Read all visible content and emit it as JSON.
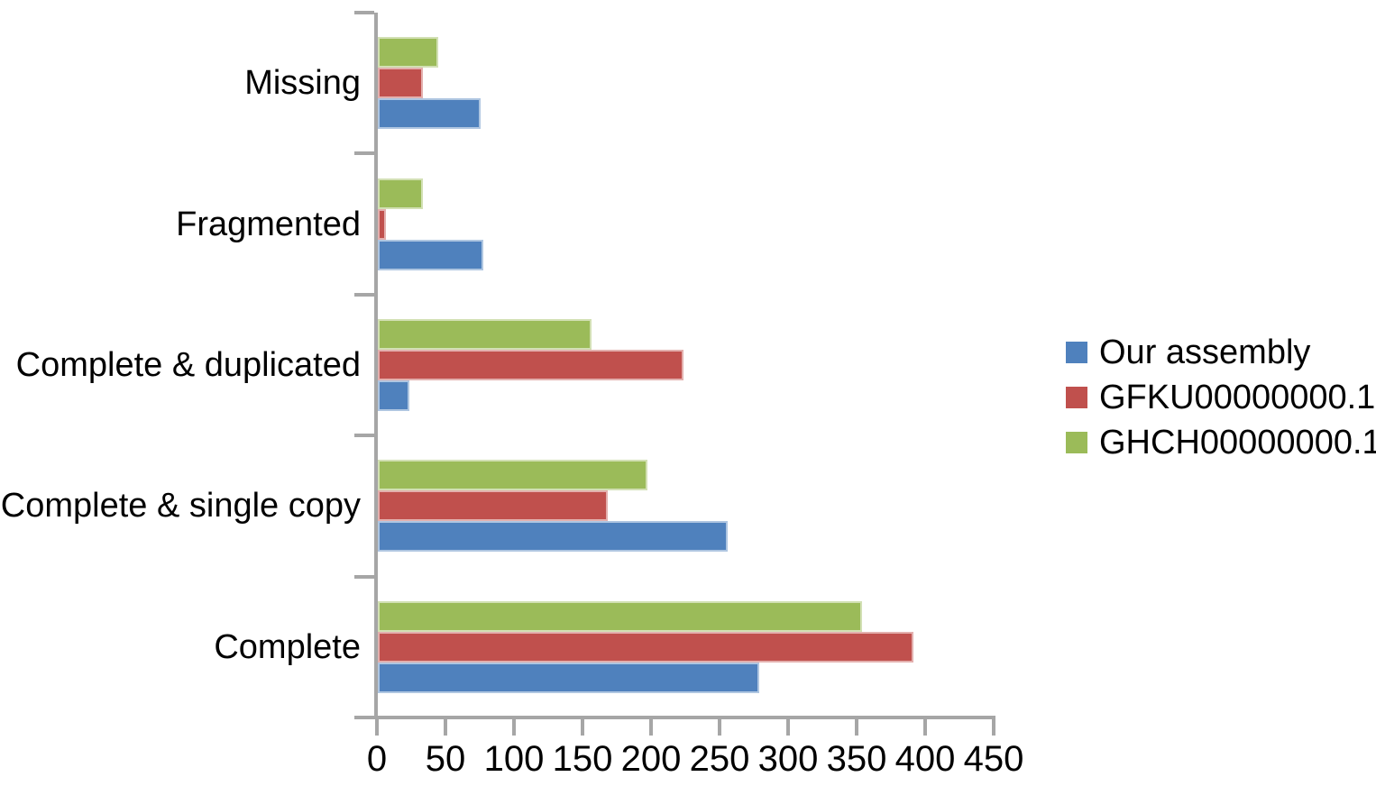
{
  "chart_data": {
    "type": "bar",
    "orientation": "horizontal",
    "categories_listed": "top-to-bottom",
    "categories": [
      "Missing",
      "Fragmented",
      "Complete & duplicated",
      "Complete & single copy",
      "Complete"
    ],
    "series": [
      {
        "name": "Our assembly",
        "color": "#4F81BD",
        "values": [
          75,
          77,
          23,
          255,
          278
        ]
      },
      {
        "name": "GFKU00000000.1",
        "color": "#C0504D",
        "values": [
          33,
          6,
          223,
          168,
          391
        ]
      },
      {
        "name": "GHCH00000000.1",
        "color": "#9BBB59",
        "values": [
          44,
          33,
          156,
          197,
          353
        ]
      }
    ],
    "xlim": [
      0,
      450
    ],
    "x_ticks": [
      0,
      50,
      100,
      150,
      200,
      250,
      300,
      350,
      400,
      450
    ],
    "legend_position": "right",
    "grid": false,
    "axis_color": "#A6A6A6",
    "text_color": "#000000",
    "background": "#FFFFFF"
  }
}
